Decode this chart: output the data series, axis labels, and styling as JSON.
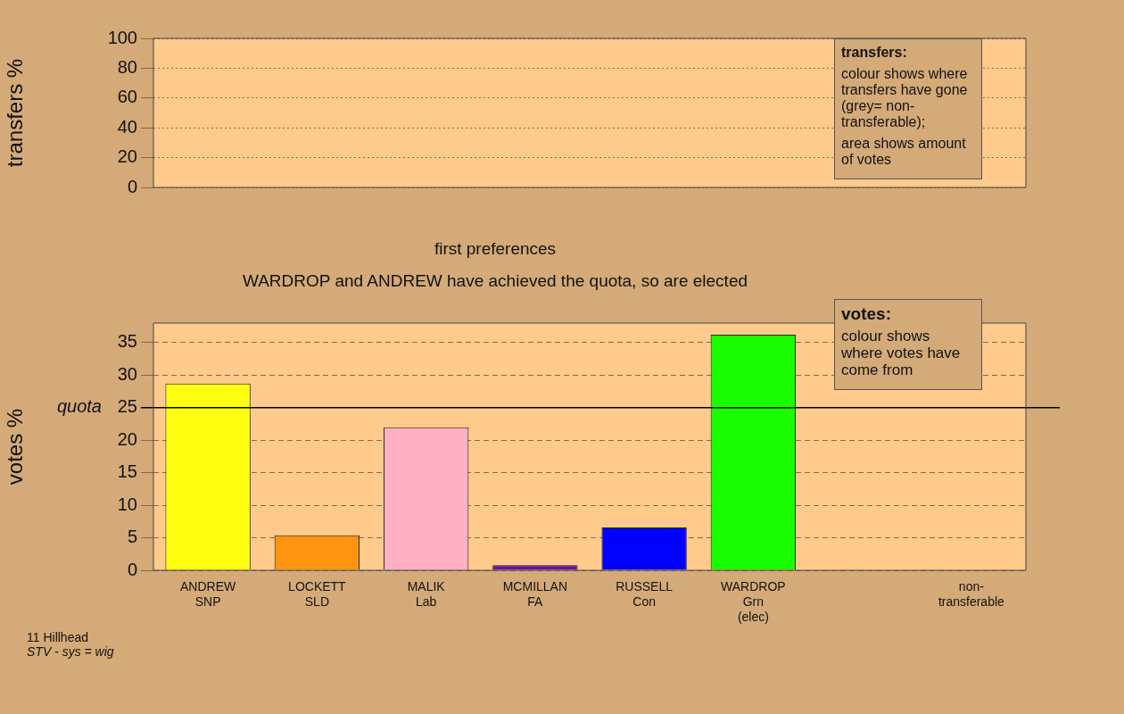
{
  "chart_data": [
    {
      "type": "bar",
      "ylabel": "transfers %",
      "categories": [
        null,
        null,
        null,
        null,
        null,
        null,
        null,
        null
      ],
      "values": [
        null,
        null,
        null,
        null,
        null,
        null,
        null,
        null
      ],
      "ylim": [
        0,
        100
      ],
      "yticks": [
        0,
        20,
        40,
        60,
        80,
        100
      ],
      "grid": true,
      "tick_labels": "y",
      "annotations": [
        "transfers:",
        "colour shows where transfers have gone (grey= non-transferable);",
        "area shows amount of votes"
      ]
    },
    {
      "type": "bar",
      "title": "first preferences",
      "subtitle": "WARDROP and ANDREW have achieved the quota, so are elected",
      "ylabel": "votes %",
      "categories": [
        "ANDREW\nSNP",
        "LOCKETT\nSLD",
        "MALIK\nLab",
        "MCMILLAN\nFA",
        "RUSSELL\nCon",
        "WARDROP\nGrn\n(elec)",
        null,
        "non-\ntransferable"
      ],
      "values": [
        28.7,
        5.4,
        22.0,
        0.8,
        6.6,
        36.2,
        null,
        null
      ],
      "colors": [
        "#ffff10",
        "#ff9410",
        "#ffb0c4",
        "#6a10a0",
        "#0000ff",
        "#1aff00",
        "#808080",
        "#808080"
      ],
      "ylim": [
        0,
        38
      ],
      "yticks": [
        0,
        5,
        10,
        15,
        20,
        25,
        30,
        35
      ],
      "grid": true,
      "ref_lines": [
        {
          "axis": "y",
          "value": 25,
          "label": "quota",
          "color": "#000000"
        }
      ],
      "annotations": [
        "votes:",
        "colour shows where votes have come from",
        "11 Hillhead",
        "STV - sys = wig"
      ]
    }
  ]
}
